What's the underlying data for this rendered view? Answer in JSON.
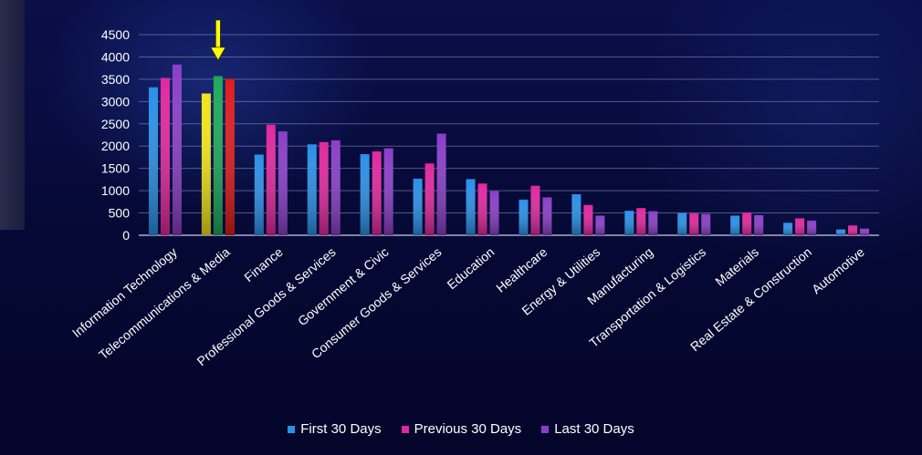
{
  "colors": {
    "first": "#2b8fe6",
    "previous": "#e0289e",
    "last": "#8a3ec7",
    "highlight_first": "#f2e41a",
    "highlight_previous": "#1fa85a",
    "highlight_last": "#e01b1b",
    "arrow": "#ffff00"
  },
  "chart_data": {
    "type": "bar",
    "categories": [
      "Information Technology",
      "Telecommunications & Media",
      "Finance",
      "Professional Goods & Services",
      "Government & Civic",
      "Consumer Goods & Services",
      "Education",
      "Healthcare",
      "Energy & Utilities",
      "Manufacturing",
      "Transportation & Logistics",
      "Materials",
      "Real Estate & Construction",
      "Automotive"
    ],
    "series": [
      {
        "name": "First 30 Days",
        "values": [
          3320,
          3180,
          1810,
          2040,
          1820,
          1270,
          1260,
          800,
          920,
          550,
          500,
          440,
          280,
          130
        ]
      },
      {
        "name": "Previous 30 Days",
        "values": [
          3530,
          3570,
          2480,
          2090,
          1880,
          1610,
          1160,
          1110,
          680,
          610,
          490,
          510,
          380,
          220
        ]
      },
      {
        "name": "Last 30 Days",
        "values": [
          3830,
          3510,
          2330,
          2130,
          1950,
          2280,
          990,
          850,
          440,
          540,
          480,
          450,
          330,
          150
        ]
      }
    ],
    "highlighted_category": "Telecommunications & Media",
    "ylim": [
      0,
      4500
    ],
    "yticks": [
      "0",
      "500",
      "1000",
      "1500",
      "2000",
      "2500",
      "3000",
      "3500",
      "4000",
      "4500"
    ],
    "grid": true,
    "legend": "bottom-center",
    "title": "",
    "xlabel": "",
    "ylabel": ""
  }
}
